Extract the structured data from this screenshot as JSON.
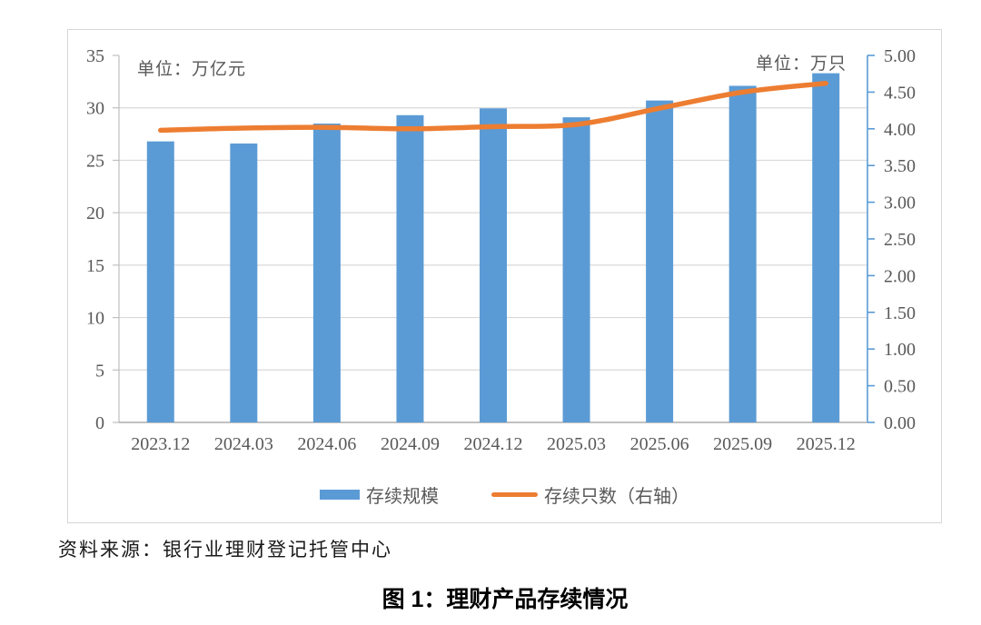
{
  "figure": {
    "unit_left": "单位：万亿元",
    "unit_right": "单位：万只",
    "source": "资料来源：银行业理财登记托管中心",
    "caption": "图 1：理财产品存续情况"
  },
  "legend": {
    "bar_label": "存续规模",
    "line_label": "存续只数（右轴）"
  },
  "colors": {
    "bar": "#5B9BD5",
    "line": "#ED7D31",
    "right_axis": "#5B9BD5",
    "grid": "#D9D9D9",
    "axis": "#ACACAC",
    "tick": "#BFBFBF",
    "text": "#595959"
  },
  "chart_data": {
    "type": "combo",
    "title": "",
    "categories": [
      "2023.12",
      "2024.03",
      "2024.06",
      "2024.09",
      "2024.12",
      "2025.03",
      "2025.06",
      "2025.09",
      "2025.12"
    ],
    "series": [
      {
        "name": "存续规模",
        "type": "bar",
        "axis": "left",
        "unit": "万亿元",
        "values": [
          26.8,
          26.6,
          28.5,
          29.3,
          29.95,
          29.1,
          30.7,
          32.1,
          33.3
        ]
      },
      {
        "name": "存续只数（右轴）",
        "type": "line",
        "axis": "right",
        "unit": "万只",
        "values": [
          3.98,
          4.01,
          4.02,
          4.0,
          4.03,
          4.06,
          4.28,
          4.5,
          4.62
        ]
      }
    ],
    "left_axis": {
      "label": "单位：万亿元",
      "min": 0,
      "max": 35,
      "step": 5
    },
    "right_axis": {
      "label": "单位：万只",
      "min": 0,
      "max": 5,
      "step": 0.5,
      "decimals": 2
    },
    "grid": true,
    "legend_position": "bottom"
  }
}
